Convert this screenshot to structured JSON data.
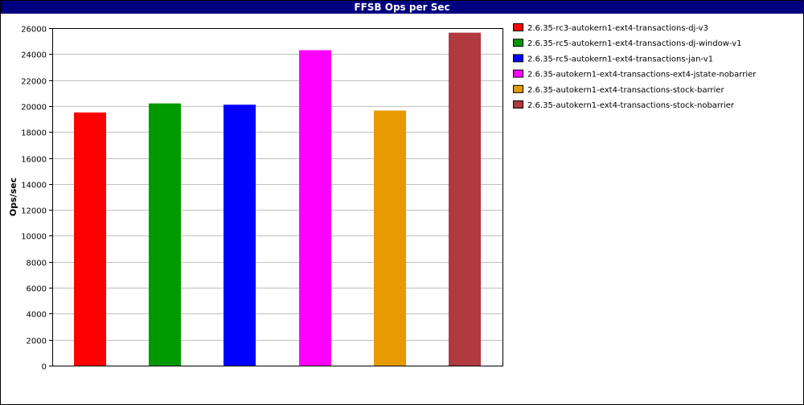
{
  "chart_data": {
    "type": "bar",
    "title": "FFSB Ops per Sec",
    "ylabel": "Ops/sec",
    "xlabel": "",
    "ylim": [
      0,
      26000
    ],
    "yticks": [
      0,
      2000,
      4000,
      6000,
      8000,
      10000,
      12000,
      14000,
      16000,
      18000,
      20000,
      22000,
      24000,
      26000
    ],
    "grid": true,
    "legend_position": "right",
    "series": [
      {
        "name": "2.6.35-rc3-autokern1-ext4-transactions-dj-v3",
        "value": 19500,
        "color": "#ff0000"
      },
      {
        "name": "2.6.35-rc5-autokern1-ext4-transactions-dj-window-v1",
        "value": 20200,
        "color": "#009900"
      },
      {
        "name": "2.6.35-rc5-autokern1-ext4-transactions-jan-v1",
        "value": 20100,
        "color": "#0000ff"
      },
      {
        "name": "2.6.35-autokern1-ext4-transactions-ext4-jstate-nobarrier",
        "value": 24300,
        "color": "#ff00ff"
      },
      {
        "name": "2.6.35-autokern1-ext4-transactions-stock-barrier",
        "value": 19650,
        "color": "#e69900"
      },
      {
        "name": "2.6.35-autokern1-ext4-transactions-stock-nobarrier",
        "value": 25650,
        "color": "#b03a3e"
      }
    ]
  }
}
